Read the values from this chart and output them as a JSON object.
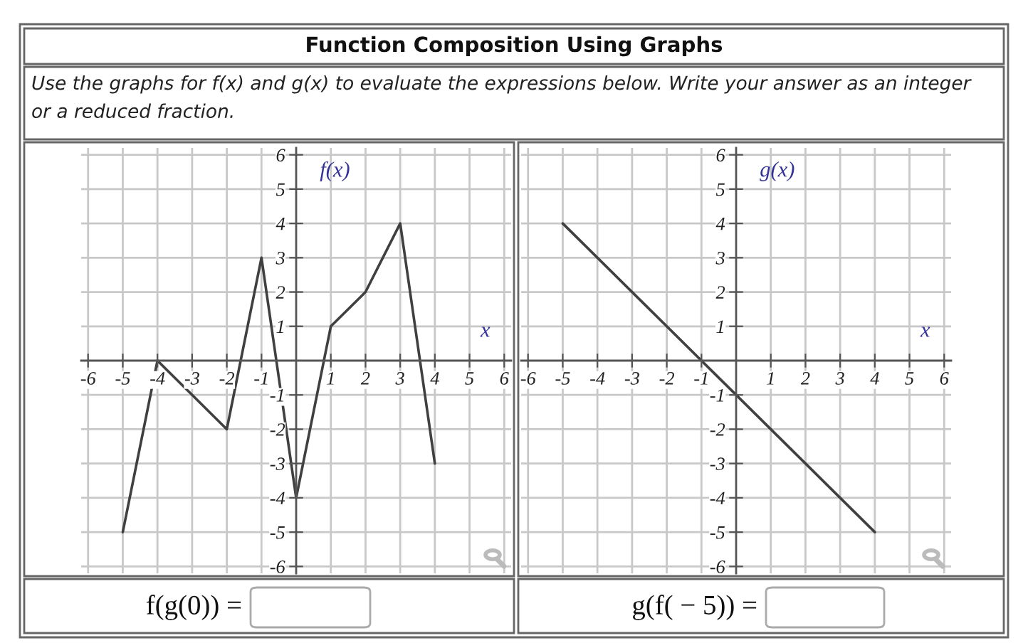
{
  "chart_data": [
    {
      "type": "line",
      "title": "Function Composition Using Graphs",
      "subtitle": "Use the graphs for f(x) and g(x) to evaluate the expressions below. Write your answer as an integer\nor a reduced fraction.",
      "xlabel": "x",
      "ylabel": "f(x)",
      "x": [
        -5,
        -4,
        -2,
        -1,
        0,
        1,
        2,
        3,
        4
      ],
      "series": [
        {
          "color": "#404040",
          "values": [
            -5,
            0,
            -2,
            3,
            -4,
            1,
            2,
            4,
            -3
          ]
        }
      ],
      "xlim": [
        -6.2,
        6.2
      ],
      "ylim": [
        -6.2,
        6.2
      ],
      "xticks": [
        -6,
        -5,
        -4,
        -3,
        -2,
        -1,
        1,
        2,
        3,
        4,
        5,
        6
      ],
      "yticks": [
        -6,
        -5,
        -4,
        -3,
        -2,
        -1,
        1,
        2,
        3,
        4,
        5,
        6
      ],
      "grid": true,
      "annotations": [
        "f(g(0)) ="
      ]
    },
    {
      "type": "line",
      "xlabel": "x",
      "ylabel": "g(x)",
      "x": [
        -5,
        4
      ],
      "series": [
        {
          "color": "#404040",
          "values": [
            4,
            -5
          ]
        }
      ],
      "xlim": [
        -6.2,
        6.2
      ],
      "ylim": [
        -6.2,
        6.2
      ],
      "xticks": [
        -6,
        -5,
        -4,
        -3,
        -2,
        -1,
        1,
        2,
        3,
        4,
        5,
        6
      ],
      "yticks": [
        -6,
        -5,
        -4,
        -3,
        -2,
        -1,
        1,
        2,
        3,
        4,
        5,
        6
      ],
      "grid": true,
      "annotations": [
        "g(f( − 5)) ="
      ]
    }
  ]
}
